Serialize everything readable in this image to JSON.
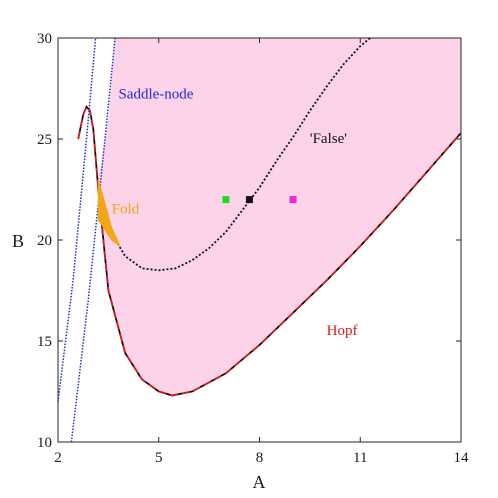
{
  "chart_data": {
    "type": "line",
    "xlabel": "A",
    "ylabel": "B",
    "xlim": [
      2,
      14
    ],
    "ylim": [
      10,
      30
    ],
    "xticks": [
      2,
      5,
      8,
      11,
      14
    ],
    "yticks": [
      10,
      15,
      20,
      25,
      30
    ],
    "colors": {
      "region": "#fcd3e8",
      "hopf": "#d41c1c",
      "saddle_node": "#1f2bd6",
      "false_curve": "#111111",
      "fold": "#f2a516"
    },
    "series": [
      {
        "name": "Hopf",
        "style": "dashed",
        "x": [
          2.6,
          2.75,
          2.85,
          2.95,
          3.05,
          3.2,
          3.5,
          4.0,
          4.5,
          5.0,
          5.4,
          6.0,
          7.0,
          8.0,
          9.0,
          10.0,
          11.0,
          12.0,
          13.0,
          14.0
        ],
        "y": [
          25.0,
          26.2,
          26.6,
          26.4,
          25.5,
          22.5,
          17.5,
          14.4,
          13.1,
          12.5,
          12.3,
          12.5,
          13.4,
          14.8,
          16.4,
          18.0,
          19.7,
          21.5,
          23.4,
          25.3
        ]
      },
      {
        "name": "Saddle-node",
        "style": "dotted",
        "x": [
          2.0,
          2.45,
          2.85,
          3.12
        ],
        "y": [
          12.0,
          18.0,
          25.0,
          30.0
        ]
      },
      {
        "name": "",
        "style": "dotted",
        "x": [
          2.4,
          2.9,
          3.4,
          3.7
        ],
        "y": [
          10.0,
          17.0,
          25.0,
          30.0
        ]
      },
      {
        "name": "'False'",
        "style": "dotted",
        "x": [
          3.2,
          3.5,
          4.0,
          4.5,
          5.0,
          5.5,
          6.0,
          6.5,
          7.0,
          7.5,
          8.0,
          8.5,
          9.0,
          9.5,
          10.0,
          10.5,
          11.0,
          11.3
        ],
        "y": [
          22.4,
          20.6,
          19.2,
          18.6,
          18.5,
          18.6,
          19.0,
          19.6,
          20.4,
          21.5,
          22.6,
          23.9,
          25.1,
          26.4,
          27.6,
          28.7,
          29.6,
          30.0
        ]
      },
      {
        "name": "Fold",
        "style": "fill",
        "upper_x": [
          3.2,
          3.4,
          3.6,
          3.85
        ],
        "upper_y": [
          23.0,
          21.8,
          20.6,
          19.7
        ],
        "lower_x": [
          3.85,
          3.6,
          3.4,
          3.2
        ],
        "lower_y": [
          19.7,
          20.0,
          20.5,
          21.0
        ]
      }
    ],
    "region": {
      "name": "pink shaded region",
      "x": [
        3.2,
        3.5,
        3.7,
        14.0,
        14.0,
        13.0,
        12.0,
        11.0,
        10.0,
        9.0,
        8.0,
        7.0,
        6.0,
        5.4,
        5.0,
        4.5,
        4.0,
        3.5,
        3.2
      ],
      "y": [
        23.0,
        26.0,
        30.0,
        30.0,
        25.3,
        23.4,
        21.5,
        19.7,
        18.0,
        16.4,
        14.8,
        13.4,
        12.5,
        12.3,
        12.5,
        13.1,
        14.4,
        17.5,
        22.5
      ]
    },
    "points": [
      {
        "x": 7.0,
        "y": 22.0,
        "color": "#23d823"
      },
      {
        "x": 7.7,
        "y": 22.0,
        "color": "#111111"
      },
      {
        "x": 9.0,
        "y": 22.0,
        "color": "#ef25d6"
      }
    ],
    "annotations": [
      {
        "text": "Saddle-node",
        "x": 3.8,
        "y": 27.0,
        "color": "#1f2bd6"
      },
      {
        "text": "'False'",
        "x": 9.5,
        "y": 24.8,
        "color": "#111111"
      },
      {
        "text": "Fold",
        "x": 3.6,
        "y": 21.3,
        "color": "#f2a516"
      },
      {
        "text": "Hopf",
        "x": 10.0,
        "y": 15.3,
        "color": "#d41c1c"
      }
    ]
  }
}
